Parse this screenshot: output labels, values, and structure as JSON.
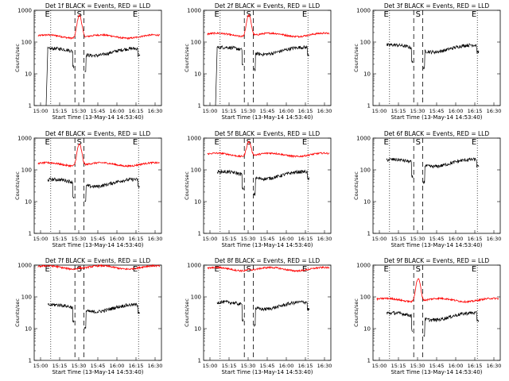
{
  "figure": {
    "xlabel": "Start Time (13-May-14 14:53:40)",
    "ylabel": "Counts/sec",
    "x_ticks": [
      "15:00",
      "15:15",
      "15:30",
      "15:45",
      "16:00",
      "16:15",
      "16:30"
    ],
    "y_ticks": [
      "1",
      "10",
      "100",
      "1000"
    ],
    "marker_labels": {
      "start": "E",
      "saa": "S",
      "end": "E"
    }
  },
  "colors": {
    "events": "#000000",
    "lld": "#ff0000"
  },
  "chart_data": [
    {
      "type": "line",
      "title": "Det 1f BLACK = Events, RED = LLD",
      "ylim": [
        1,
        1000
      ],
      "y_scale": "log",
      "lld_base": 150,
      "lld_peak": 700,
      "events_base": 50,
      "has_lld": true,
      "left_drop": true
    },
    {
      "type": "line",
      "title": "Det 2f BLACK = Events, RED = LLD",
      "ylim": [
        1,
        1000
      ],
      "y_scale": "log",
      "lld_base": 170,
      "lld_peak": 720,
      "events_base": 55,
      "has_lld": true,
      "left_drop": true
    },
    {
      "type": "line",
      "title": "Det 3f BLACK = Events, RED = LLD",
      "ylim": [
        1,
        1000
      ],
      "y_scale": "log",
      "lld_base": 0,
      "lld_peak": 0,
      "events_base": 65,
      "has_lld": false,
      "left_drop": false
    },
    {
      "type": "line",
      "title": "Det 4f BLACK = Events, RED = LLD",
      "ylim": [
        1,
        1000
      ],
      "y_scale": "log",
      "lld_base": 150,
      "lld_peak": 650,
      "events_base": 40,
      "has_lld": true,
      "left_drop": false
    },
    {
      "type": "line",
      "title": "Det 5f BLACK = Events, RED = LLD",
      "ylim": [
        1,
        1000
      ],
      "y_scale": "log",
      "lld_base": 300,
      "lld_peak": 800,
      "events_base": 70,
      "has_lld": true,
      "left_drop": false
    },
    {
      "type": "line",
      "title": "Det 6f BLACK = Events, RED = LLD",
      "ylim": [
        1,
        1000
      ],
      "y_scale": "log",
      "lld_base": 0,
      "lld_peak": 0,
      "events_base": 170,
      "has_lld": false,
      "left_drop": false
    },
    {
      "type": "line",
      "title": "Det 7f BLACK = Events, RED = LLD",
      "ylim": [
        1,
        1000
      ],
      "y_scale": "log",
      "lld_base": 850,
      "lld_peak": 900,
      "events_base": 45,
      "has_lld": true,
      "left_drop": false
    },
    {
      "type": "line",
      "title": "Det 8f BLACK = Events, RED = LLD",
      "ylim": [
        1,
        1000
      ],
      "y_scale": "log",
      "lld_base": 750,
      "lld_peak": 800,
      "events_base": 55,
      "has_lld": true,
      "left_drop": false
    },
    {
      "type": "line",
      "title": "Det 9f BLACK = Events, RED = LLD",
      "ylim": [
        1,
        1000
      ],
      "y_scale": "log",
      "lld_base": 80,
      "lld_peak": 380,
      "events_base": 25,
      "has_lld": true,
      "left_drop": false
    }
  ]
}
